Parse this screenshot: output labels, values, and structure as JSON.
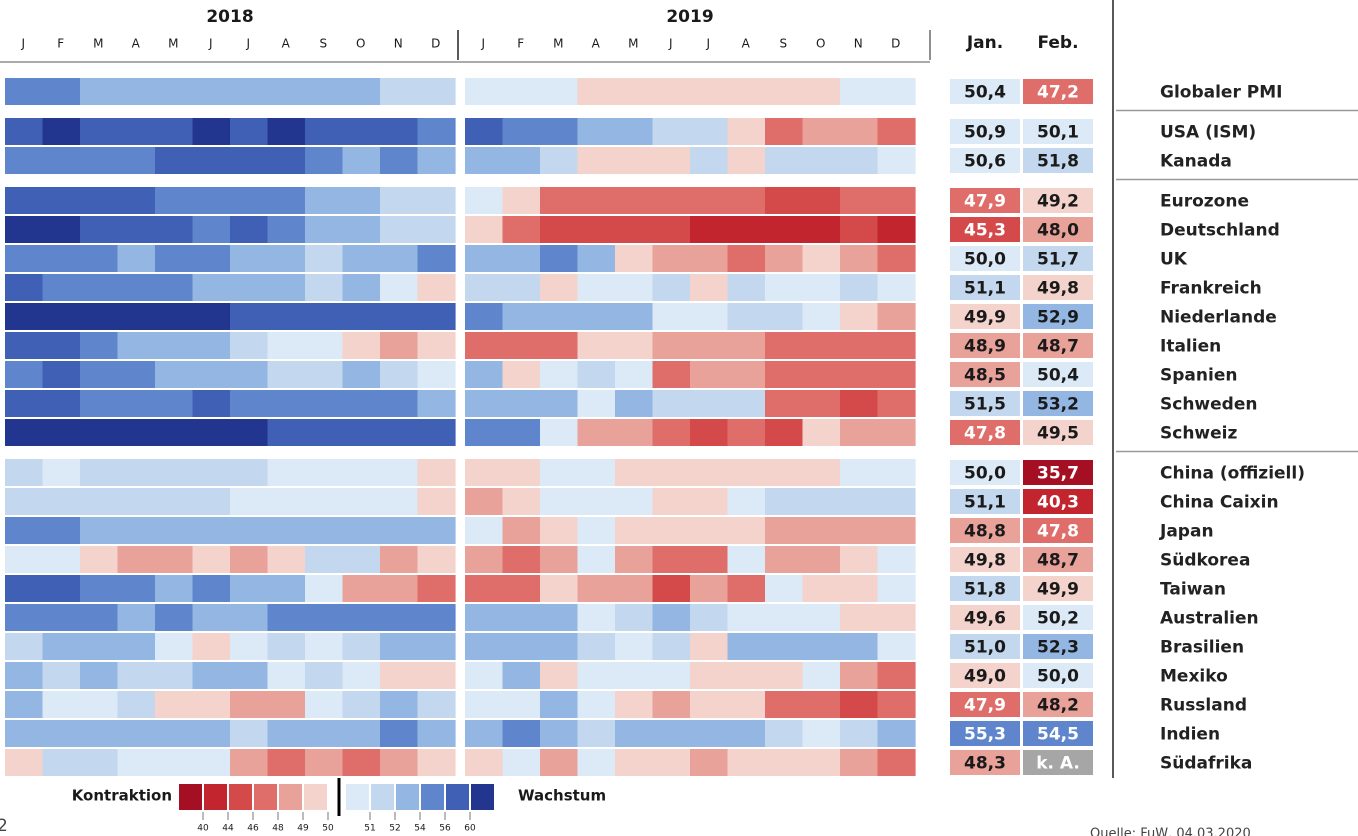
{
  "chart_data": {
    "type": "heatmap",
    "years": [
      "2018",
      "2019"
    ],
    "months": [
      "J",
      "F",
      "M",
      "A",
      "M",
      "J",
      "J",
      "A",
      "S",
      "O",
      "N",
      "D"
    ],
    "columns": [
      "Jan.",
      "Feb."
    ],
    "legend": {
      "low_label": "Kontraktion",
      "high_label": "Wachstum",
      "ticks": [
        40,
        44,
        46,
        48,
        49,
        50,
        51,
        52,
        54,
        56,
        60
      ],
      "colors": [
        "#a50f24",
        "#c2252e",
        "#d44a4a",
        "#df6e6a",
        "#e9a29a",
        "#f3d3cb",
        "#dce9f6",
        "#c3d7ee",
        "#93b6e3",
        "#5f86cc",
        "#3f60b5",
        "#23368f"
      ],
      "missing_color": "#a6a6a6"
    },
    "groups": [
      {
        "rows": [
          {
            "name": "Globaler PMI",
            "values": [
              55,
              55,
              53,
              53,
              53,
              53,
              53,
              53,
              53,
              53,
              51.5,
              51.5,
              50.5,
              50.5,
              50.5,
              49.5,
              49.5,
              49.5,
              49.5,
              49.5,
              49.5,
              49.5,
              50.5,
              50.5
            ],
            "latest": [
              50.4,
              47.2
            ],
            "value_labels": [
              "50,4",
              "47,2"
            ]
          }
        ]
      },
      {
        "rows": [
          {
            "name": "USA (ISM)",
            "values": [
              58,
              61,
              58,
              58,
              58,
              61,
              58,
              61,
              58,
              58,
              58,
              55,
              58,
              55,
              55,
              53,
              53,
              51.5,
              51.5,
              49.5,
              47,
              48.5,
              48.5,
              47
            ],
            "latest": [
              50.9,
              50.1
            ],
            "value_labels": [
              "50,9",
              "50,1"
            ]
          },
          {
            "name": "Kanada",
            "values": [
              55,
              55,
              55,
              55,
              58,
              58,
              58,
              58,
              55,
              53,
              55,
              53,
              53,
              53,
              51.5,
              49.5,
              49.5,
              49.5,
              51.5,
              49.5,
              51.5,
              51.5,
              51.5,
              50.5
            ],
            "latest": [
              50.6,
              51.8
            ],
            "value_labels": [
              "50,6",
              "51,8"
            ]
          }
        ]
      },
      {
        "rows": [
          {
            "name": "Eurozone",
            "values": [
              58,
              58,
              58,
              58,
              55,
              55,
              55,
              55,
              53,
              53,
              51.5,
              51.5,
              50.5,
              49.5,
              47,
              47,
              47,
              47,
              47,
              47,
              45,
              45,
              47,
              47
            ],
            "latest": [
              47.9,
              49.2
            ],
            "value_labels": [
              "47,9",
              "49,2"
            ]
          },
          {
            "name": "Deutschland",
            "values": [
              61,
              61,
              58,
              58,
              58,
              55,
              58,
              55,
              53,
              53,
              51.5,
              51.5,
              49.5,
              47,
              45,
              45,
              45,
              45,
              42,
              42,
              42,
              42,
              45,
              42
            ],
            "latest": [
              45.3,
              48.0
            ],
            "value_labels": [
              "45,3",
              "48,0"
            ]
          },
          {
            "name": "UK",
            "values": [
              55,
              55,
              55,
              53,
              55,
              55,
              53,
              53,
              51.5,
              53,
              53,
              55,
              53,
              53,
              55,
              53,
              49.5,
              48.5,
              48.5,
              47,
              48.5,
              49.5,
              48.5,
              47
            ],
            "latest": [
              50.0,
              51.7
            ],
            "value_labels": [
              "50,0",
              "51,7"
            ]
          },
          {
            "name": "Frankreich",
            "values": [
              58,
              55,
              55,
              55,
              55,
              53,
              53,
              53,
              51.5,
              53,
              50.5,
              49.5,
              51.5,
              51.5,
              49.5,
              50.5,
              50.5,
              51.5,
              49.5,
              51.5,
              50.5,
              50.5,
              51.5,
              50.5
            ],
            "latest": [
              51.1,
              49.8
            ],
            "value_labels": [
              "51,1",
              "49,8"
            ]
          },
          {
            "name": "Niederlande",
            "values": [
              61,
              61,
              61,
              61,
              61,
              61,
              58,
              58,
              58,
              58,
              58,
              58,
              55,
              53,
              53,
              53,
              53,
              50.5,
              50.5,
              51.5,
              51.5,
              50.5,
              49.5,
              48.5
            ],
            "latest": [
              49.9,
              52.9
            ],
            "value_labels": [
              "49,9",
              "52,9"
            ]
          },
          {
            "name": "Italien",
            "values": [
              58,
              58,
              55,
              53,
              53,
              53,
              51.5,
              50.5,
              50.5,
              49.5,
              48.5,
              49.5,
              47,
              47,
              47,
              49.5,
              49.5,
              48.5,
              48.5,
              48.5,
              47,
              47,
              47,
              47
            ],
            "latest": [
              48.9,
              48.7
            ],
            "value_labels": [
              "48,9",
              "48,7"
            ]
          },
          {
            "name": "Spanien",
            "values": [
              55,
              58,
              55,
              55,
              53,
              53,
              53,
              51.5,
              51.5,
              53,
              51.5,
              50.5,
              53,
              49.5,
              50.5,
              51.5,
              50.5,
              47,
              48.5,
              48.5,
              47,
              47,
              47,
              47
            ],
            "latest": [
              48.5,
              50.4
            ],
            "value_labels": [
              "48,5",
              "50,4"
            ]
          },
          {
            "name": "Schweden",
            "values": [
              58,
              58,
              55,
              55,
              55,
              58,
              55,
              55,
              55,
              55,
              55,
              53,
              53,
              53,
              53,
              50.5,
              53,
              51.5,
              51.5,
              51.5,
              47,
              47,
              45,
              47
            ],
            "latest": [
              51.5,
              53.2
            ],
            "value_labels": [
              "51,5",
              "53,2"
            ]
          },
          {
            "name": "Schweiz",
            "values": [
              61,
              61,
              61,
              61,
              61,
              61,
              61,
              58,
              58,
              58,
              58,
              58,
              55,
              55,
              50.5,
              48.5,
              48.5,
              47,
              45,
              47,
              45,
              49.5,
              48.5,
              48.5
            ],
            "latest": [
              47.8,
              49.5
            ],
            "value_labels": [
              "47,8",
              "49,5"
            ]
          }
        ]
      },
      {
        "rows": [
          {
            "name": "China (offiziell)",
            "values": [
              51.5,
              50.5,
              51.5,
              51.5,
              51.5,
              51.5,
              51.5,
              50.5,
              50.5,
              50.5,
              50.5,
              49.5,
              49.5,
              49.5,
              50.5,
              50.5,
              49.5,
              49.5,
              49.5,
              49.5,
              49.5,
              49.5,
              50.5,
              50.5
            ],
            "latest": [
              50.0,
              35.7
            ],
            "value_labels": [
              "50,0",
              "35,7"
            ]
          },
          {
            "name": "China Caixin",
            "values": [
              51.5,
              51.5,
              51.5,
              51.5,
              51.5,
              51.5,
              50.5,
              50.5,
              50.5,
              50.5,
              50.5,
              49.5,
              48.5,
              49.5,
              50.5,
              50.5,
              50.5,
              49.5,
              49.5,
              50.5,
              51.5,
              51.5,
              51.5,
              51.5
            ],
            "latest": [
              51.1,
              40.3
            ],
            "value_labels": [
              "51,1",
              "40,3"
            ]
          },
          {
            "name": "Japan",
            "values": [
              55,
              55,
              53,
              53,
              53,
              53,
              53,
              53,
              53,
              53,
              53,
              53,
              50.5,
              48.5,
              49.5,
              50.5,
              49.5,
              49.5,
              49.5,
              49.5,
              48.5,
              48.5,
              48.5,
              48.5
            ],
            "latest": [
              48.8,
              47.8
            ],
            "value_labels": [
              "48,8",
              "47,8"
            ]
          },
          {
            "name": "Südkorea",
            "values": [
              50.5,
              50.5,
              49.5,
              48.5,
              48.5,
              49.5,
              48.5,
              49.5,
              51.5,
              51.5,
              48.5,
              49.5,
              48.5,
              47,
              48.5,
              50.5,
              48.5,
              47,
              47,
              50.5,
              48.5,
              48.5,
              49.5,
              50.5
            ],
            "latest": [
              49.8,
              48.7
            ],
            "value_labels": [
              "49,8",
              "48,7"
            ]
          },
          {
            "name": "Taiwan",
            "values": [
              58,
              58,
              55,
              55,
              53,
              55,
              53,
              53,
              50.5,
              48.5,
              48.5,
              47,
              47,
              47,
              49.5,
              48.5,
              48.5,
              45,
              48.5,
              47,
              50.5,
              49.5,
              49.5,
              50.5
            ],
            "latest": [
              51.8,
              49.9
            ],
            "value_labels": [
              "51,8",
              "49,9"
            ]
          },
          {
            "name": "Australien",
            "values": [
              55,
              55,
              55,
              53,
              55,
              53,
              53,
              55,
              55,
              55,
              55,
              55,
              53,
              53,
              53,
              50.5,
              51.5,
              53,
              51.5,
              50.5,
              50.5,
              50.5,
              49.5,
              49.5
            ],
            "latest": [
              49.6,
              50.2
            ],
            "value_labels": [
              "49,6",
              "50,2"
            ]
          },
          {
            "name": "Brasilien",
            "values": [
              51.5,
              53,
              53,
              53,
              50.5,
              49.5,
              50.5,
              51.5,
              50.5,
              51.5,
              53,
              53,
              53,
              53,
              53,
              51.5,
              50.5,
              51.5,
              49.5,
              53,
              53,
              53,
              53,
              50.5
            ],
            "latest": [
              51.0,
              52.3
            ],
            "value_labels": [
              "51,0",
              "52,3"
            ]
          },
          {
            "name": "Mexiko",
            "values": [
              53,
              51.5,
              53,
              51.5,
              51.5,
              53,
              53,
              50.5,
              51.5,
              50.5,
              49.5,
              49.5,
              50.5,
              53,
              49.5,
              50.5,
              50.5,
              50.5,
              49.5,
              49.5,
              49.5,
              50.5,
              48.5,
              47
            ],
            "latest": [
              49.0,
              50.0
            ],
            "value_labels": [
              "49,0",
              "50,0"
            ]
          },
          {
            "name": "Russland",
            "values": [
              53,
              50.5,
              50.5,
              51.5,
              49.5,
              49.5,
              48.5,
              48.5,
              50.5,
              51.5,
              53,
              51.5,
              50.5,
              50.5,
              53,
              50.5,
              49.5,
              48.5,
              49.5,
              49.5,
              47,
              47,
              45,
              47
            ],
            "latest": [
              47.9,
              48.2
            ],
            "value_labels": [
              "47,9",
              "48,2"
            ]
          },
          {
            "name": "Indien",
            "values": [
              53,
              53,
              53,
              53,
              53,
              53,
              51.5,
              53,
              53,
              53,
              55,
              53,
              53,
              55,
              53,
              51.5,
              53,
              53,
              53,
              53,
              51.5,
              50.5,
              51.5,
              53
            ],
            "latest": [
              55.3,
              54.5
            ],
            "value_labels": [
              "55,3",
              "54,5"
            ]
          },
          {
            "name": "Südafrika",
            "values": [
              49.5,
              51.5,
              51.5,
              50.5,
              50.5,
              50.5,
              48.5,
              47,
              48.5,
              47,
              48.5,
              49.5,
              49.5,
              50.5,
              48.5,
              50.5,
              49.5,
              49.5,
              48.5,
              49.5,
              49.5,
              49.5,
              48.5,
              47
            ],
            "latest": [
              48.3,
              null
            ],
            "value_labels": [
              "48,3",
              "k. A."
            ]
          }
        ]
      }
    ],
    "page_number": "2",
    "source": "Quelle: FuW, 04.03.2020"
  }
}
